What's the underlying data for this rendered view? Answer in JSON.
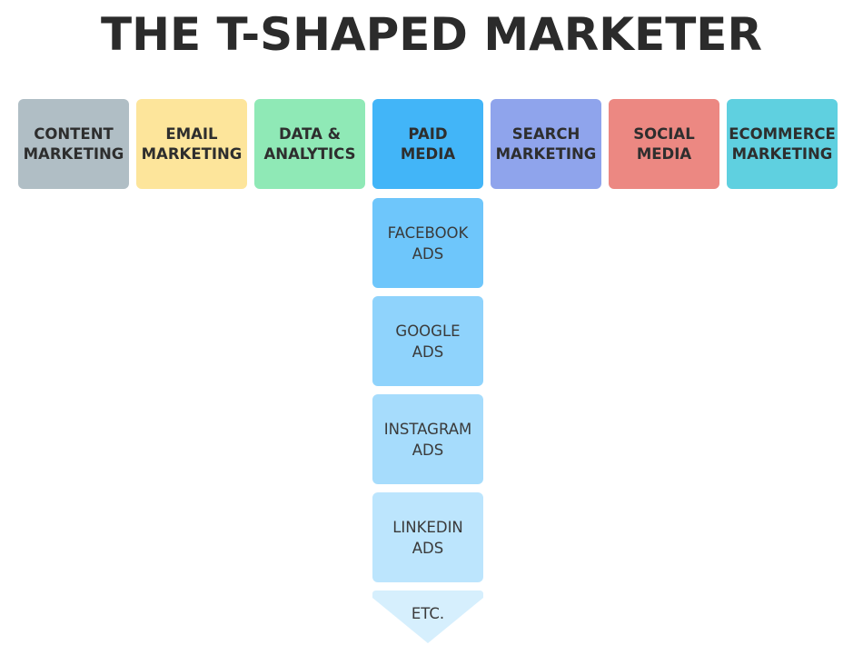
{
  "title": "THE T-SHAPED MARKETER",
  "categories": [
    {
      "label": "CONTENT\nMARKETING",
      "color": "#b0bec5"
    },
    {
      "label": "EMAIL\nMARKETING",
      "color": "#fde59b"
    },
    {
      "label": "DATA &\nANALYTICS",
      "color": "#8fe9b6"
    },
    {
      "label": "PAID\nMEDIA",
      "color": "#42b5f8"
    },
    {
      "label": "SEARCH\nMARKETING",
      "color": "#8fa4ec"
    },
    {
      "label": "SOCIAL\nMEDIA",
      "color": "#ec8882"
    },
    {
      "label": "ECOMMERCE\nMARKETING",
      "color": "#5fd0e0"
    }
  ],
  "depth": [
    {
      "label": "FACEBOOK\nADS",
      "color": "#6ec6fb"
    },
    {
      "label": "GOOGLE\nADS",
      "color": "#8fd3fc"
    },
    {
      "label": "INSTAGRAM\nADS",
      "color": "#a6dcfc"
    },
    {
      "label": "LINKEDIN\nADS",
      "color": "#bce5fd"
    }
  ],
  "more": {
    "label": "ETC.",
    "color": "#d6effd"
  }
}
